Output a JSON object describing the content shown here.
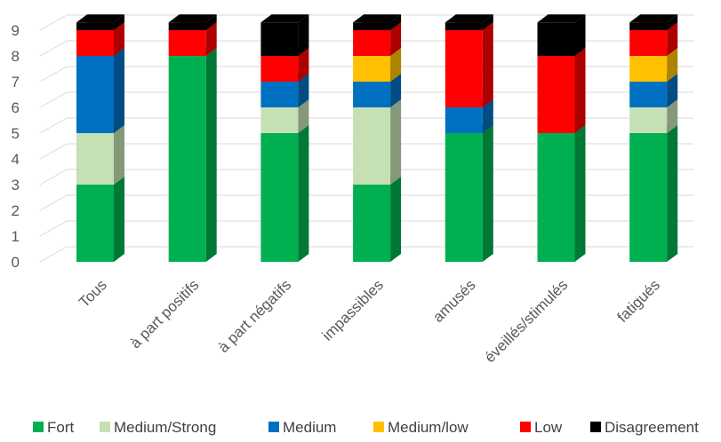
{
  "chart_data": {
    "type": "bar",
    "stacked": true,
    "three_d": true,
    "title": "",
    "xlabel": "",
    "ylabel": "",
    "ylim": [
      0,
      9
    ],
    "yticks": [
      0,
      1,
      2,
      3,
      4,
      5,
      6,
      7,
      8,
      9
    ],
    "grid": true,
    "legend_position": "bottom",
    "categories": [
      "Tous",
      "à part positifs",
      "à part négatifs",
      "impassibles",
      "amusés",
      "éveillés/stimulés",
      "fatigués"
    ],
    "series": [
      {
        "name": "Fort",
        "color": "#00b050",
        "values": [
          3,
          8,
          5,
          3,
          5,
          5,
          5
        ]
      },
      {
        "name": "Medium/Strong",
        "color": "#c5e0b4",
        "values": [
          2,
          0,
          1,
          3,
          0,
          0,
          1
        ]
      },
      {
        "name": "Medium",
        "color": "#0070c0",
        "values": [
          3,
          0,
          1,
          1,
          1,
          0,
          1
        ]
      },
      {
        "name": "Medium/low",
        "color": "#ffc000",
        "values": [
          0,
          0,
          0,
          1,
          0,
          0,
          1
        ]
      },
      {
        "name": "Low",
        "color": "#ff0000",
        "values": [
          1,
          1,
          1,
          1,
          3,
          3,
          1
        ]
      },
      {
        "name": "Disagreement",
        "color": "#000000",
        "values": [
          0.3,
          0.3,
          1.3,
          0.3,
          0.3,
          1.3,
          0.3
        ]
      }
    ]
  }
}
